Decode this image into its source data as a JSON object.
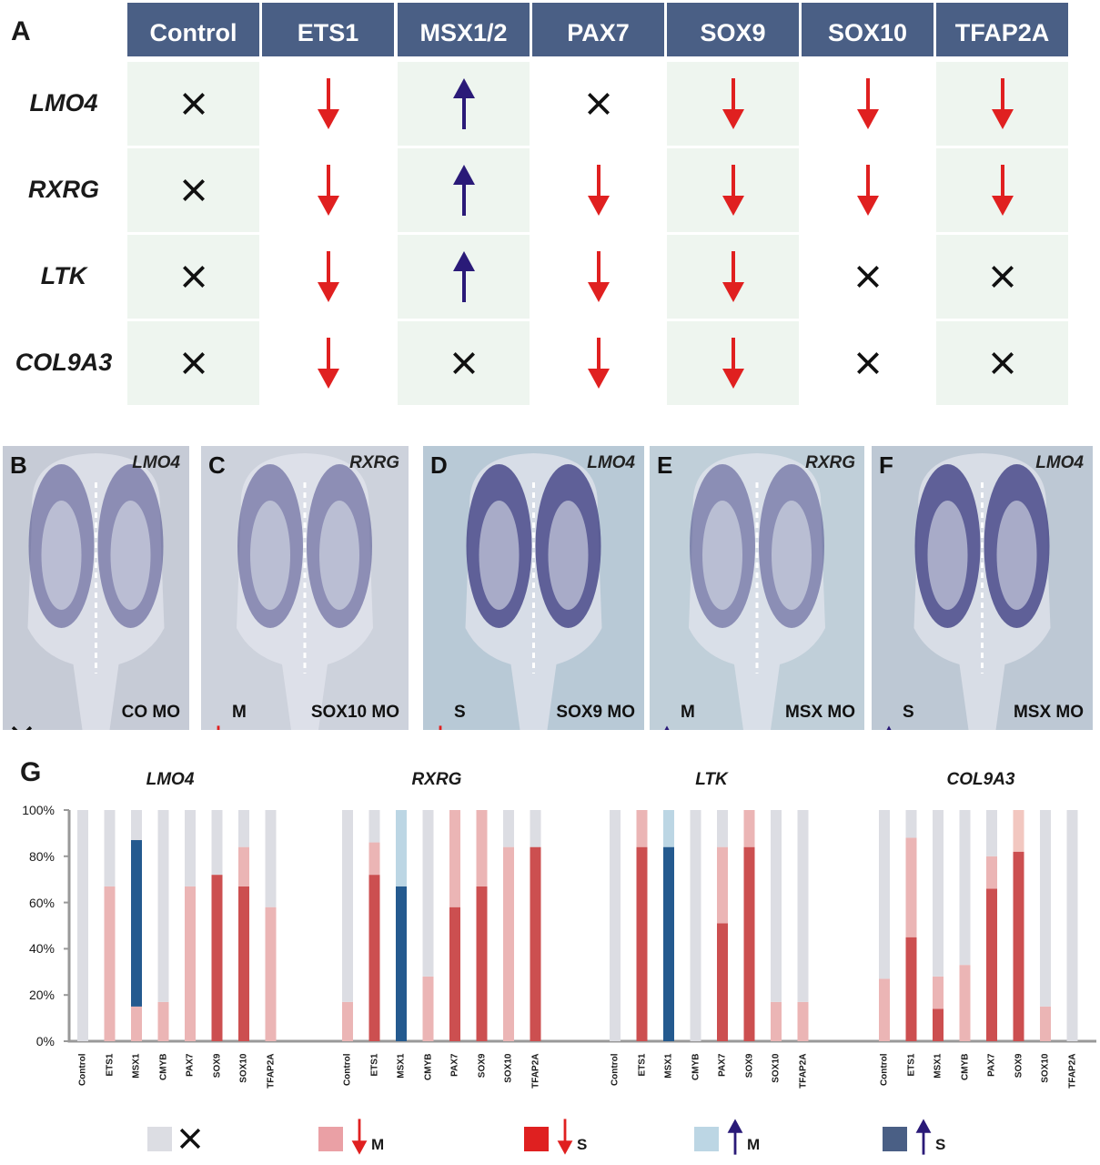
{
  "panelA": {
    "letter": "A",
    "headers": [
      "Control",
      "ETS1",
      "MSX1/2",
      "PAX7",
      "SOX9",
      "SOX10",
      "TFAP2A"
    ],
    "rows": [
      {
        "gene": "LMO4",
        "cells": [
          "x",
          "down",
          "up",
          "x",
          "down",
          "down",
          "down"
        ]
      },
      {
        "gene": "RXRG",
        "cells": [
          "x",
          "down",
          "up",
          "down",
          "down",
          "down",
          "down"
        ]
      },
      {
        "gene": "LTK",
        "cells": [
          "x",
          "down",
          "up",
          "down",
          "down",
          "x",
          "x"
        ]
      },
      {
        "gene": "COL9A3",
        "cells": [
          "x",
          "down",
          "x",
          "down",
          "down",
          "x",
          "x"
        ]
      }
    ],
    "colors": {
      "header": "#4a5f85",
      "cell": "#eef5ef",
      "down": "#e02020",
      "up": "#2a1a78",
      "x": "#111111"
    }
  },
  "photos": [
    {
      "letter": "B",
      "gene": "LMO4",
      "mo": "CO MO",
      "icon": "x",
      "code": ""
    },
    {
      "letter": "C",
      "gene": "RXRG",
      "mo": "SOX10 MO",
      "icon": "down",
      "code": "M"
    },
    {
      "letter": "D",
      "gene": "LMO4",
      "mo": "SOX9 MO",
      "icon": "down",
      "code": "S"
    },
    {
      "letter": "E",
      "gene": "RXRG",
      "mo": "MSX MO",
      "icon": "up",
      "code": "M"
    },
    {
      "letter": "F",
      "gene": "LMO4",
      "mo": "MSX MO",
      "icon": "up",
      "code": "S"
    }
  ],
  "chart_data": {
    "letter": "G",
    "type": "bar",
    "stacked": true,
    "ylim": [
      0,
      100
    ],
    "yticks": [
      "0%",
      "20%",
      "40%",
      "60%",
      "80%",
      "100%"
    ],
    "categories": [
      "Control",
      "ETS1",
      "MSX1",
      "CMYB",
      "PAX7",
      "SOX9",
      "SOX10",
      "TFAP2A"
    ],
    "segment_order": [
      "strong",
      "moderate",
      "none"
    ],
    "colors": {
      "none": "#dcdde3",
      "moderate": "#ebb5b5",
      "strong": "#cc4f50",
      "up_moderate": "#bcd6e4",
      "up_strong": "#245a8f",
      "faint": "#f2c7c0"
    },
    "charts": [
      {
        "title": "LMO4",
        "bars": [
          {
            "moderate": 0,
            "strong": 0
          },
          {
            "moderate": 67,
            "strong": 0
          },
          {
            "moderate": 15,
            "up_strong": 72
          },
          {
            "moderate": 17,
            "strong": 0
          },
          {
            "moderate": 67,
            "strong": 0
          },
          {
            "moderate": 0,
            "strong": 72
          },
          {
            "moderate": 17,
            "strong": 67
          },
          {
            "moderate": 58,
            "strong": 0
          }
        ]
      },
      {
        "title": "RXRG",
        "bars": [
          {
            "moderate": 17,
            "strong": 0
          },
          {
            "moderate": 14,
            "strong": 72
          },
          {
            "up_moderate": 33,
            "up_strong": 67
          },
          {
            "moderate": 28,
            "strong": 0
          },
          {
            "moderate": 42,
            "strong": 58
          },
          {
            "moderate": 33,
            "strong": 67
          },
          {
            "moderate": 84,
            "strong": 0
          },
          {
            "moderate": 0,
            "strong": 84
          }
        ]
      },
      {
        "title": "LTK",
        "bars": [
          {
            "moderate": 0,
            "strong": 0
          },
          {
            "moderate": 16,
            "strong": 84
          },
          {
            "up_moderate": 16,
            "up_strong": 84
          },
          {
            "moderate": 0,
            "strong": 0
          },
          {
            "moderate": 33,
            "strong": 51
          },
          {
            "moderate": 16,
            "strong": 84
          },
          {
            "moderate": 17,
            "strong": 0
          },
          {
            "moderate": 17,
            "strong": 0
          }
        ]
      },
      {
        "title": "COL9A3",
        "bars": [
          {
            "moderate": 27,
            "strong": 0
          },
          {
            "moderate": 43,
            "strong": 45
          },
          {
            "moderate": 14,
            "strong": 14
          },
          {
            "moderate": 33,
            "strong": 0
          },
          {
            "moderate": 14,
            "strong": 66
          },
          {
            "faint": 18,
            "strong": 82
          },
          {
            "moderate": 15,
            "strong": 0
          },
          {
            "moderate": 0,
            "strong": 0
          }
        ]
      }
    ],
    "legend": [
      {
        "swatch": "#dcdde3",
        "icon": "x",
        "label": ""
      },
      {
        "swatch": "#eaa0a5",
        "icon": "down",
        "label": "M"
      },
      {
        "swatch": "#df2020",
        "icon": "down",
        "label": "S"
      },
      {
        "swatch": "#bcd6e4",
        "icon": "up",
        "label": "M"
      },
      {
        "swatch": "#4a5f85",
        "icon": "up",
        "label": "S"
      }
    ]
  }
}
